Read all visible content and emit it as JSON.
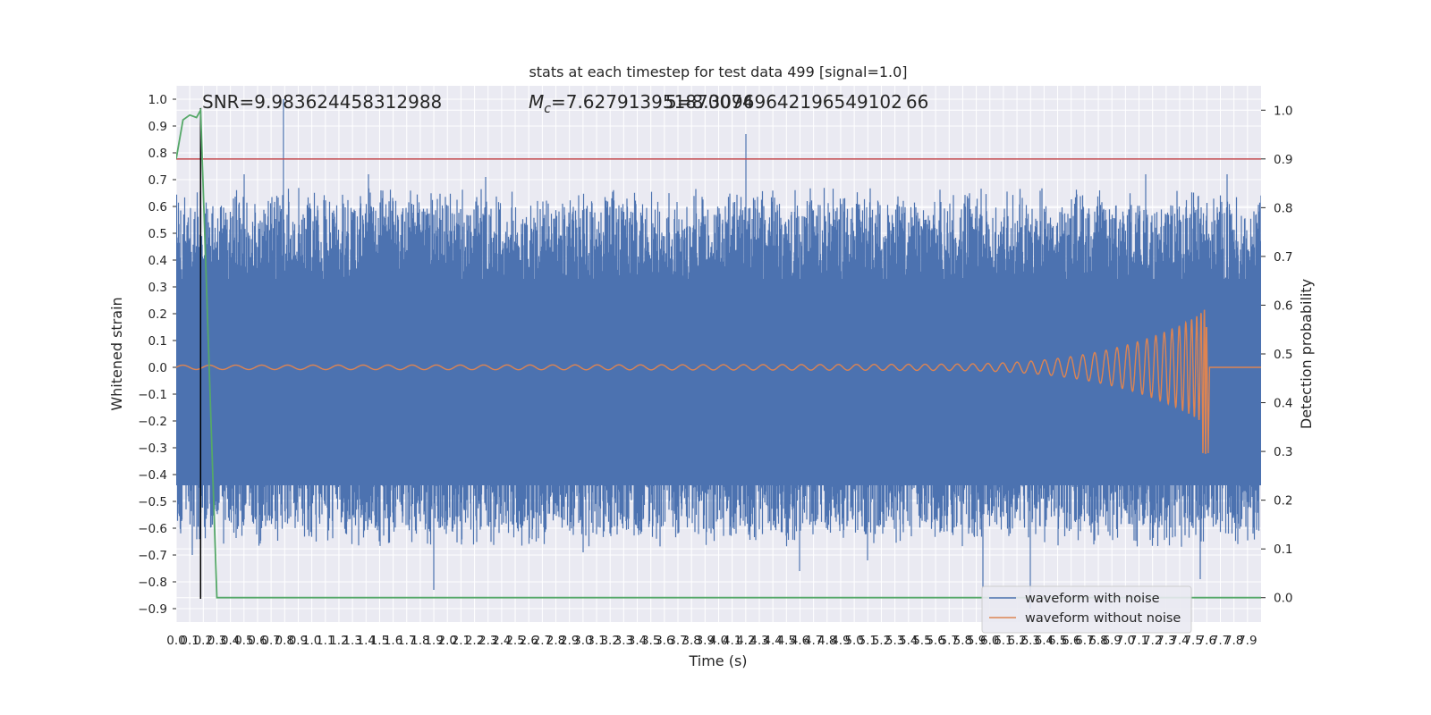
{
  "chart_data": {
    "type": "line",
    "title": "stats at each timestep for test data 499 [signal=1.0]",
    "xlabel": "Time (s)",
    "ylabel": "Whitened strain",
    "ylabel_right": "Detection probability",
    "xlim": [
      0.0,
      8.0
    ],
    "ylim": [
      -0.95,
      1.05
    ],
    "ylim_right": [
      -0.05,
      1.05
    ],
    "x_ticks": [
      "0.0",
      "0.1",
      "0.2",
      "0.3",
      "0.4",
      "0.5",
      "0.6",
      "0.7",
      "0.8",
      "0.9",
      "1.0",
      "1.1",
      "1.2",
      "1.3",
      "1.4",
      "1.5",
      "1.6",
      "1.7",
      "1.8",
      "1.9",
      "2.0",
      "2.1",
      "2.2",
      "2.3",
      "2.4",
      "2.5",
      "2.6",
      "2.7",
      "2.8",
      "2.9",
      "3.0",
      "3.1",
      "3.2",
      "3.3",
      "3.4",
      "3.5",
      "3.6",
      "3.7",
      "3.8",
      "3.9",
      "4.0",
      "4.1",
      "4.2",
      "4.3",
      "4.4",
      "4.5",
      "4.6",
      "4.7",
      "4.8",
      "4.9",
      "5.0",
      "5.1",
      "5.2",
      "5.3",
      "5.4",
      "5.5",
      "5.6",
      "5.7",
      "5.8",
      "5.9",
      "6.0",
      "6.1",
      "6.2",
      "6.3",
      "6.4",
      "6.5",
      "6.6",
      "6.7",
      "6.8",
      "6.9",
      "7.0",
      "7.1",
      "7.2",
      "7.3",
      "7.4",
      "7.5",
      "7.6",
      "7.7",
      "7.8",
      "7.9"
    ],
    "y_ticks_left": [
      "1.0",
      "0.9",
      "0.8",
      "0.7",
      "0.6",
      "0.5",
      "0.4",
      "0.3",
      "0.2",
      "0.1",
      "0.0",
      "−0.1",
      "−0.2",
      "−0.3",
      "−0.4",
      "−0.5",
      "−0.6",
      "−0.7",
      "−0.8",
      "−0.9"
    ],
    "y_ticks_right": [
      "1.0",
      "0.9",
      "0.8",
      "0.7",
      "0.6",
      "0.5",
      "0.4",
      "0.3",
      "0.2",
      "0.1",
      "0.0"
    ],
    "annotations": {
      "snr": "SNR=9.983624458312988",
      "mc_prefix": "M",
      "mc_sub": "c",
      "mc_value": "=7.627913951870074",
      "overlap": "5=8.30969642196549102 66"
    },
    "series": [
      {
        "name": "waveform with noise",
        "color": "#4c72b0",
        "axis": "left",
        "noise_band": [
          -0.55,
          0.55
        ],
        "spikes": [
          {
            "t": 0.79,
            "v": 1.0
          },
          {
            "t": 4.2,
            "v": 0.87
          },
          {
            "t": 0.5,
            "v": 0.72
          },
          {
            "t": 1.42,
            "v": 0.72
          },
          {
            "t": 2.28,
            "v": 0.71
          },
          {
            "t": 7.15,
            "v": 0.72
          },
          {
            "t": 7.75,
            "v": 0.72
          },
          {
            "t": 1.9,
            "v": -0.83
          },
          {
            "t": 6.3,
            "v": -0.9
          },
          {
            "t": 7.55,
            "v": -0.79
          },
          {
            "t": 0.12,
            "v": -0.7
          },
          {
            "t": 4.6,
            "v": -0.76
          },
          {
            "t": 5.95,
            "v": -0.82
          },
          {
            "t": 3.0,
            "v": -0.69
          },
          {
            "t": 5.1,
            "v": -0.72
          }
        ]
      },
      {
        "name": "waveform without noise",
        "color": "#dd8452",
        "axis": "left",
        "merger_time": 7.6,
        "peak_amplitude": 0.22,
        "trough_amplitude": -0.32
      },
      {
        "name": "detection probability",
        "color": "#55a868",
        "axis": "right",
        "x": [
          0.0,
          0.05,
          0.1,
          0.15,
          0.18,
          0.3,
          0.35,
          2.6,
          2.8,
          8.0
        ],
        "y": [
          0.9,
          0.98,
          0.99,
          0.985,
          1.0,
          0.0,
          0.0,
          0.0,
          0.0,
          0.0
        ]
      }
    ],
    "threshold": {
      "value": 0.9,
      "axis": "right",
      "color": "#c44e52"
    },
    "vline": {
      "t": 0.18,
      "color": "#000000"
    },
    "legend": {
      "position": "lower-right",
      "entries": [
        "waveform with noise",
        "waveform without noise"
      ]
    }
  }
}
